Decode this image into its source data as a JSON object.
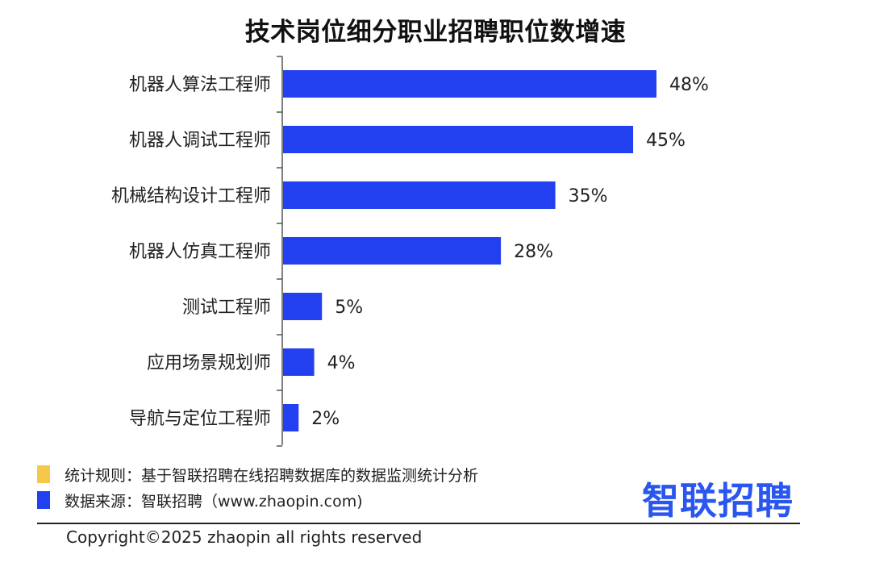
{
  "chart_data": {
    "type": "bar",
    "orientation": "horizontal",
    "title": "技术岗位细分职业招聘职位数增速",
    "categories": [
      "机器人算法工程师",
      "机器人调试工程师",
      "机械结构设计工程师",
      "机器人仿真工程师",
      "测试工程师",
      "应用场景规划师",
      "导航与定位工程师"
    ],
    "values": [
      48,
      45,
      35,
      28,
      5,
      4,
      2
    ],
    "data_labels": [
      "48%",
      "45%",
      "35%",
      "28%",
      "5%",
      "4%",
      "2%"
    ],
    "unit": "%",
    "xlim": [
      0,
      50
    ],
    "grid": false,
    "bar_color": "#2340f0"
  },
  "notes": [
    {
      "text": "统计规则：基于智联招聘在线招聘数据库的数据监测统计分析",
      "color": "#f5c74a"
    },
    {
      "text": "数据来源：智联招聘（www.zhaopin.com)",
      "color": "#2340f0"
    }
  ],
  "logo_text": "智联招聘",
  "copyright": "Copyright©2025 zhaopin all rights reserved"
}
